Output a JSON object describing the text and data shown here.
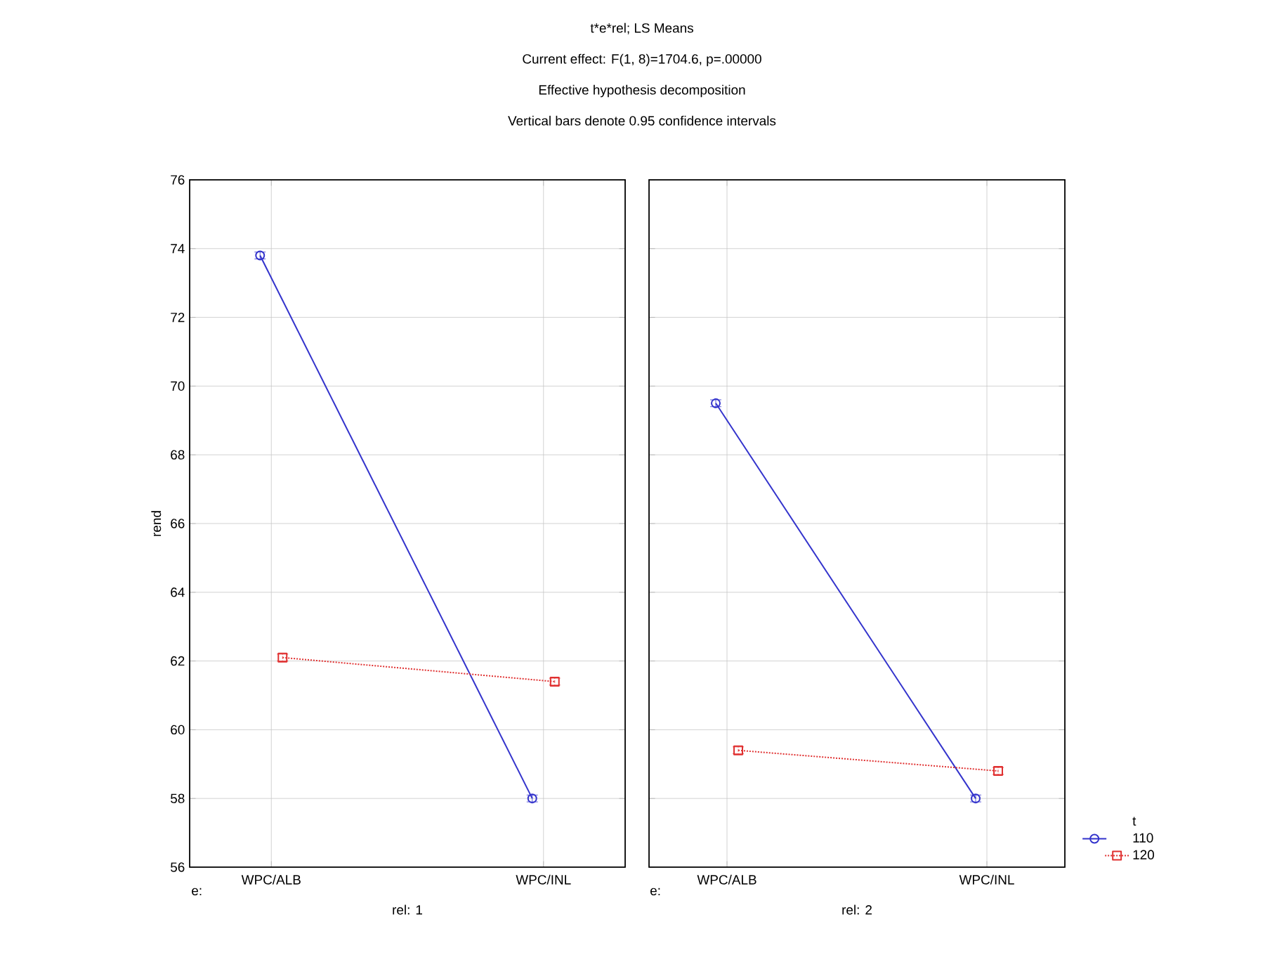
{
  "chart_data": [
    {
      "type": "line",
      "title": "t*e*rel; LS Means",
      "subtitle": "Current effect: F(1, 8)=1704.6, p=.00000",
      "annotations": [
        "Effective hypothesis decomposition",
        "Vertical bars denote 0.95 confidence intervals",
        "e:"
      ],
      "xlabel": "rel: 1",
      "ylabel": "rend",
      "categories": [
        "WPC/ALB",
        "WPC/INL"
      ],
      "series": [
        {
          "color": "#3333cc",
          "values": [
            73.8,
            58.0
          ],
          "errors": [
            0.1,
            0.1
          ],
          "marker": "circle",
          "line_style": "solid"
        },
        {
          "color": "#e03030",
          "values": [
            62.1,
            61.4
          ],
          "errors": [
            0.1,
            0.1
          ],
          "marker": "square",
          "line_style": "dotted"
        }
      ],
      "ylim": [
        56,
        76
      ],
      "yticks": [
        56,
        58,
        60,
        62,
        64,
        66,
        68,
        70,
        72,
        74,
        76
      ],
      "grid": true
    },
    {
      "type": "line",
      "annotations": [
        "e:"
      ],
      "xlabel": "rel: 2",
      "categories": [
        "WPC/ALB",
        "WPC/INL"
      ],
      "legend_title": "t",
      "series": [
        {
          "name": "110",
          "color": "#3333cc",
          "values": [
            69.5,
            58.0
          ],
          "errors": [
            0.1,
            0.1
          ],
          "marker": "circle",
          "line_style": "solid"
        },
        {
          "name": "120",
          "color": "#e03030",
          "values": [
            59.4,
            58.8
          ],
          "errors": [
            0.1,
            0.1
          ],
          "marker": "square",
          "line_style": "dotted"
        }
      ],
      "ylim": [
        56,
        76
      ],
      "yticks": [
        56,
        58,
        60,
        62,
        64,
        66,
        68,
        70,
        72,
        74,
        76
      ],
      "grid": true,
      "tick_labels": "x",
      "legend": "bottom right"
    }
  ]
}
